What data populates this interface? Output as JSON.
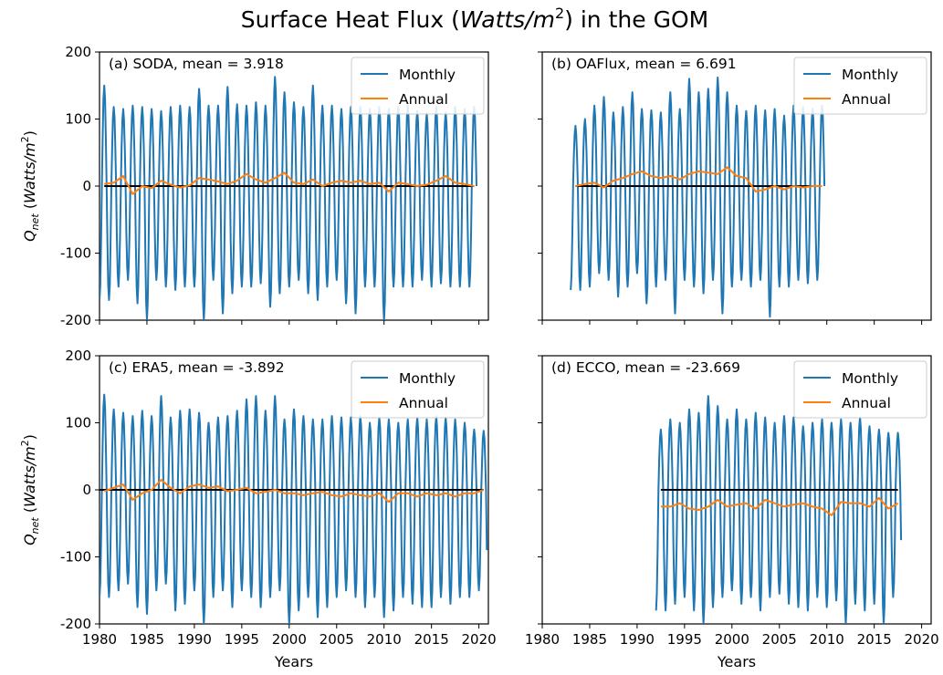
{
  "figure": {
    "title_main": "Surface Heat Flux (",
    "title_italic": "Watts/m",
    "title_sup": "2",
    "title_tail": ") in the GOM"
  },
  "chart_data": [
    {
      "type": "line",
      "panel": "a",
      "title": "(a) SODA, mean = 3.918",
      "xlabel": "",
      "ylabel_main": "Q",
      "ylabel_sub": "net",
      "ylabel_unit": "Watts/m",
      "ylabel_sup": "2",
      "xlim": [
        1980,
        2021
      ],
      "ylim": [
        -200,
        200
      ],
      "xticks": [
        1980,
        1985,
        1990,
        1995,
        2000,
        2005,
        2010,
        2015,
        2020
      ],
      "yticks": [
        -200,
        -100,
        0,
        100,
        200
      ],
      "show_xticklabels": false,
      "show_yticklabels": true,
      "legend": {
        "position": "top-right",
        "entries": [
          "Monthly",
          "Annual"
        ]
      },
      "monthly": {
        "name": "Monthly",
        "color": "#1f77b4",
        "start": 1980.0,
        "end": 2019.8,
        "peaks": [
          150,
          118,
          115,
          120,
          118,
          115,
          112,
          118,
          120,
          118,
          145,
          120,
          120,
          148,
          122,
          120,
          125,
          120,
          163,
          140,
          125,
          118,
          150,
          120,
          120,
          115,
          118,
          118,
          115,
          118,
          115,
          118,
          120,
          112,
          108,
          118,
          110,
          118,
          115,
          118,
          130
        ],
        "troughs": [
          -170,
          -150,
          -140,
          -175,
          -200,
          -140,
          -150,
          -155,
          -150,
          -150,
          -200,
          -140,
          -190,
          -160,
          -150,
          -150,
          -145,
          -180,
          -160,
          -150,
          -140,
          -160,
          -170,
          -150,
          -140,
          -175,
          -190,
          -150,
          -150,
          -200,
          -150,
          -150,
          -150,
          -140,
          -150,
          -145,
          -150,
          -150,
          -150,
          -140,
          -145
        ]
      },
      "annual": {
        "name": "Annual",
        "color": "#ff7f0e",
        "x": [
          1980.5,
          1981.5,
          1982.5,
          1983.5,
          1984.5,
          1985.5,
          1986.5,
          1987.5,
          1988.5,
          1989.5,
          1990.5,
          1991.5,
          1992.5,
          1993.5,
          1994.5,
          1995.5,
          1996.5,
          1997.5,
          1998.5,
          1999.5,
          2000.5,
          2001.5,
          2002.5,
          2003.5,
          2004.5,
          2005.5,
          2006.5,
          2007.5,
          2008.5,
          2009.5,
          2010.5,
          2011.5,
          2012.5,
          2013.5,
          2014.5,
          2015.5,
          2016.5,
          2017.5,
          2018.5,
          2019.5
        ],
        "y": [
          3,
          5,
          15,
          -12,
          0,
          -3,
          8,
          2,
          -2,
          1,
          12,
          10,
          7,
          3,
          8,
          18,
          10,
          5,
          12,
          20,
          5,
          3,
          10,
          0,
          5,
          8,
          5,
          8,
          3,
          5,
          -8,
          5,
          3,
          0,
          2,
          8,
          15,
          5,
          3,
          0
        ]
      },
      "zero_line": {
        "color": "#000000",
        "x": [
          1980.5,
          2019.5
        ],
        "y": 0
      }
    },
    {
      "type": "line",
      "panel": "b",
      "title": "(b) OAFlux, mean = 6.691",
      "xlabel": "",
      "xlim": [
        1980,
        2021
      ],
      "ylim": [
        -200,
        200
      ],
      "xticks": [
        1980,
        1985,
        1990,
        1995,
        2000,
        2005,
        2010,
        2015,
        2020
      ],
      "yticks": [
        -200,
        -100,
        0,
        100,
        200
      ],
      "show_xticklabels": false,
      "show_yticklabels": false,
      "legend": {
        "position": "top-right",
        "entries": [
          "Monthly",
          "Annual"
        ]
      },
      "monthly": {
        "name": "Monthly",
        "color": "#1f77b4",
        "start": 1983.0,
        "end": 2009.8,
        "peaks": [
          90,
          100,
          120,
          133,
          110,
          118,
          140,
          115,
          113,
          110,
          140,
          115,
          160,
          140,
          145,
          162,
          140,
          120,
          112,
          120,
          113,
          115,
          105,
          120,
          118,
          115,
          120
        ],
        "troughs": [
          -155,
          -150,
          -130,
          -140,
          -165,
          -150,
          -130,
          -175,
          -150,
          -140,
          -190,
          -140,
          -150,
          -160,
          -140,
          -190,
          -150,
          -140,
          -150,
          -140,
          -195,
          -150,
          -150,
          -140,
          -145,
          -140,
          -130
        ]
      },
      "annual": {
        "name": "Annual",
        "color": "#ff7f0e",
        "x": [
          1983.5,
          1984.5,
          1985.5,
          1986.5,
          1987.5,
          1988.5,
          1989.5,
          1990.5,
          1991.5,
          1992.5,
          1993.5,
          1994.5,
          1995.5,
          1996.5,
          1997.5,
          1998.5,
          1999.5,
          2000.5,
          2001.5,
          2002.5,
          2003.5,
          2004.5,
          2005.5,
          2006.5,
          2007.5,
          2008.5,
          2009.5
        ],
        "y": [
          0,
          3,
          5,
          -2,
          8,
          12,
          18,
          22,
          15,
          12,
          15,
          10,
          18,
          22,
          20,
          18,
          28,
          15,
          12,
          -8,
          -5,
          0,
          -5,
          0,
          -2,
          0,
          0
        ]
      },
      "zero_line": {
        "color": "#000000",
        "x": [
          1983.5,
          2009.5
        ],
        "y": 0
      }
    },
    {
      "type": "line",
      "panel": "c",
      "title": "(c) ERA5, mean = -3.892",
      "xlabel": "Years",
      "ylabel_main": "Q",
      "ylabel_sub": "net",
      "ylabel_unit": "Watts/m",
      "ylabel_sup": "2",
      "xlim": [
        1980,
        2021
      ],
      "ylim": [
        -200,
        200
      ],
      "xticks": [
        1980,
        1985,
        1990,
        1995,
        2000,
        2005,
        2010,
        2015,
        2020
      ],
      "yticks": [
        -200,
        -100,
        0,
        100,
        200
      ],
      "show_xticklabels": true,
      "show_yticklabels": true,
      "legend": {
        "position": "top-right",
        "entries": [
          "Monthly",
          "Annual"
        ]
      },
      "monthly": {
        "name": "Monthly",
        "color": "#1f77b4",
        "start": 1980.0,
        "end": 2020.9,
        "peaks": [
          142,
          120,
          115,
          110,
          118,
          110,
          140,
          108,
          118,
          120,
          115,
          100,
          108,
          110,
          118,
          135,
          140,
          118,
          140,
          105,
          120,
          110,
          105,
          105,
          110,
          108,
          108,
          110,
          100,
          108,
          105,
          100,
          105,
          108,
          105,
          110,
          108,
          105,
          100,
          90,
          88
        ],
        "troughs": [
          -160,
          -150,
          -140,
          -175,
          -185,
          -150,
          -140,
          -180,
          -170,
          -150,
          -200,
          -160,
          -150,
          -175,
          -150,
          -160,
          -175,
          -160,
          -150,
          -200,
          -180,
          -160,
          -190,
          -175,
          -160,
          -150,
          -160,
          -175,
          -160,
          -190,
          -180,
          -160,
          -170,
          -175,
          -175,
          -160,
          -170,
          -160,
          -160,
          -150,
          -180
        ]
      },
      "annual": {
        "name": "Annual",
        "color": "#ff7f0e",
        "x": [
          1980.5,
          1981.5,
          1982.5,
          1983.5,
          1984.5,
          1985.5,
          1986.5,
          1987.5,
          1988.5,
          1989.5,
          1990.5,
          1991.5,
          1992.5,
          1993.5,
          1994.5,
          1995.5,
          1996.5,
          1997.5,
          1998.5,
          1999.5,
          2000.5,
          2001.5,
          2002.5,
          2003.5,
          2004.5,
          2005.5,
          2006.5,
          2007.5,
          2008.5,
          2009.5,
          2010.5,
          2011.5,
          2012.5,
          2013.5,
          2014.5,
          2015.5,
          2016.5,
          2017.5,
          2018.5,
          2019.5,
          2020.5
        ],
        "y": [
          -2,
          3,
          8,
          -15,
          -5,
          0,
          15,
          3,
          -5,
          5,
          8,
          3,
          5,
          -2,
          0,
          3,
          -5,
          -3,
          0,
          -5,
          -5,
          -8,
          -5,
          -3,
          -8,
          -10,
          -5,
          -8,
          -10,
          -5,
          -18,
          -5,
          -5,
          -10,
          -5,
          -8,
          -5,
          -10,
          -5,
          -5,
          0
        ]
      },
      "zero_line": {
        "color": "#000000",
        "x": [
          1980.0,
          2020.5
        ],
        "y": 0
      }
    },
    {
      "type": "line",
      "panel": "d",
      "title": "(d) ECCO, mean = -23.669",
      "xlabel": "Years",
      "xlim": [
        1980,
        2021
      ],
      "ylim": [
        -200,
        200
      ],
      "xticks": [
        1980,
        1985,
        1990,
        1995,
        2000,
        2005,
        2010,
        2015,
        2020
      ],
      "yticks": [
        -200,
        -100,
        0,
        100,
        200
      ],
      "show_xticklabels": true,
      "show_yticklabels": false,
      "legend": {
        "position": "top-right",
        "entries": [
          "Monthly",
          "Annual"
        ]
      },
      "monthly": {
        "name": "Monthly",
        "color": "#1f77b4",
        "start": 1992.0,
        "end": 2017.9,
        "peaks": [
          90,
          105,
          100,
          120,
          115,
          140,
          125,
          105,
          120,
          105,
          115,
          108,
          100,
          110,
          108,
          95,
          100,
          105,
          100,
          105,
          100,
          108,
          95,
          90,
          85,
          85
        ],
        "troughs": [
          -180,
          -170,
          -160,
          -180,
          -200,
          -175,
          -160,
          -150,
          -170,
          -160,
          -180,
          -160,
          -155,
          -170,
          -175,
          -180,
          -160,
          -175,
          -165,
          -200,
          -170,
          -180,
          -170,
          -200,
          -160,
          -150
        ]
      },
      "annual": {
        "name": "Annual",
        "color": "#ff7f0e",
        "x": [
          1992.5,
          1993.5,
          1994.5,
          1995.5,
          1996.5,
          1997.5,
          1998.5,
          1999.5,
          2000.5,
          2001.5,
          2002.5,
          2003.5,
          2004.5,
          2005.5,
          2006.5,
          2007.5,
          2008.5,
          2009.5,
          2010.5,
          2011.5,
          2012.5,
          2013.5,
          2014.5,
          2015.5,
          2016.5,
          2017.5
        ],
        "y": [
          -25,
          -25,
          -20,
          -28,
          -30,
          -25,
          -15,
          -25,
          -22,
          -20,
          -28,
          -15,
          -20,
          -25,
          -22,
          -20,
          -25,
          -28,
          -38,
          -18,
          -20,
          -20,
          -25,
          -12,
          -28,
          -20
        ]
      },
      "zero_line": {
        "color": "#000000",
        "x": [
          1992.5,
          2017.5
        ],
        "y": 0
      }
    }
  ]
}
